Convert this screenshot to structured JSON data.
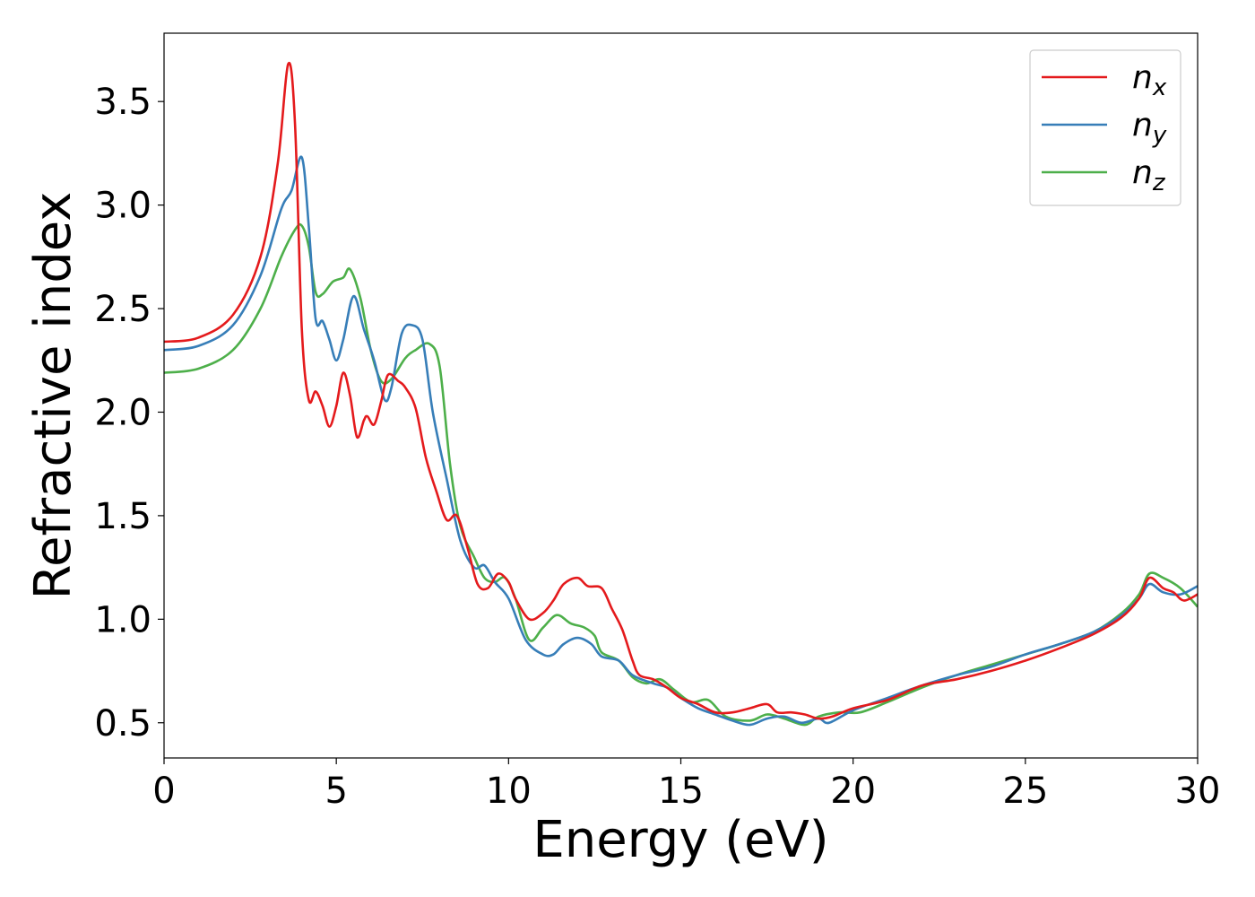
{
  "chart_data": {
    "type": "line",
    "xlabel": "Energy (eV)",
    "ylabel": "Refractive index",
    "xlim": [
      0,
      30
    ],
    "ylim": [
      0.33,
      3.83
    ],
    "xticks": [
      0,
      5,
      10,
      15,
      20,
      25,
      30
    ],
    "xtick_labels": [
      "0",
      "5",
      "10",
      "15",
      "20",
      "25",
      "30"
    ],
    "yticks": [
      0.5,
      1.0,
      1.5,
      2.0,
      2.5,
      3.0,
      3.5
    ],
    "ytick_labels": [
      "0.5",
      "1.0",
      "1.5",
      "2.0",
      "2.5",
      "3.0",
      "3.5"
    ],
    "grid": false,
    "legend_position": "top-right",
    "series": [
      {
        "name": "n",
        "subscript": "x",
        "color": "#e41a1c",
        "points": [
          [
            0,
            2.34
          ],
          [
            1,
            2.36
          ],
          [
            2,
            2.47
          ],
          [
            2.8,
            2.75
          ],
          [
            3.3,
            3.2
          ],
          [
            3.6,
            3.68
          ],
          [
            3.8,
            3.4
          ],
          [
            4.0,
            2.4
          ],
          [
            4.2,
            2.06
          ],
          [
            4.4,
            2.1
          ],
          [
            4.6,
            2.03
          ],
          [
            4.8,
            1.93
          ],
          [
            5.0,
            2.03
          ],
          [
            5.2,
            2.19
          ],
          [
            5.4,
            2.08
          ],
          [
            5.6,
            1.88
          ],
          [
            5.8,
            1.96
          ],
          [
            5.9,
            1.98
          ],
          [
            6.1,
            1.94
          ],
          [
            6.3,
            2.05
          ],
          [
            6.5,
            2.18
          ],
          [
            6.8,
            2.15
          ],
          [
            7.0,
            2.12
          ],
          [
            7.3,
            2.02
          ],
          [
            7.6,
            1.78
          ],
          [
            7.9,
            1.62
          ],
          [
            8.2,
            1.48
          ],
          [
            8.5,
            1.5
          ],
          [
            8.8,
            1.35
          ],
          [
            9.1,
            1.17
          ],
          [
            9.4,
            1.15
          ],
          [
            9.7,
            1.22
          ],
          [
            10.0,
            1.18
          ],
          [
            10.2,
            1.1
          ],
          [
            10.6,
            1.0
          ],
          [
            11.0,
            1.03
          ],
          [
            11.3,
            1.09
          ],
          [
            11.6,
            1.17
          ],
          [
            12.0,
            1.2
          ],
          [
            12.3,
            1.16
          ],
          [
            12.7,
            1.15
          ],
          [
            13.0,
            1.05
          ],
          [
            13.3,
            0.95
          ],
          [
            13.6,
            0.8
          ],
          [
            13.8,
            0.73
          ],
          [
            14.2,
            0.71
          ],
          [
            14.6,
            0.67
          ],
          [
            15.0,
            0.62
          ],
          [
            15.5,
            0.59
          ],
          [
            16.0,
            0.55
          ],
          [
            16.5,
            0.55
          ],
          [
            17.0,
            0.57
          ],
          [
            17.5,
            0.59
          ],
          [
            17.8,
            0.55
          ],
          [
            18.2,
            0.55
          ],
          [
            18.6,
            0.54
          ],
          [
            19.0,
            0.52
          ],
          [
            19.4,
            0.53
          ],
          [
            20.0,
            0.57
          ],
          [
            21.0,
            0.61
          ],
          [
            22.0,
            0.68
          ],
          [
            23.0,
            0.71
          ],
          [
            24.0,
            0.75
          ],
          [
            25.0,
            0.8
          ],
          [
            26.0,
            0.86
          ],
          [
            27.0,
            0.93
          ],
          [
            27.8,
            1.01
          ],
          [
            28.3,
            1.1
          ],
          [
            28.6,
            1.2
          ],
          [
            29.0,
            1.15
          ],
          [
            29.3,
            1.13
          ],
          [
            29.6,
            1.09
          ],
          [
            30.0,
            1.12
          ]
        ]
      },
      {
        "name": "n",
        "subscript": "y",
        "color": "#377eb8",
        "points": [
          [
            0,
            2.3
          ],
          [
            1,
            2.32
          ],
          [
            2,
            2.42
          ],
          [
            2.8,
            2.66
          ],
          [
            3.4,
            2.98
          ],
          [
            3.7,
            3.07
          ],
          [
            4.0,
            3.23
          ],
          [
            4.2,
            2.9
          ],
          [
            4.4,
            2.45
          ],
          [
            4.6,
            2.44
          ],
          [
            4.8,
            2.35
          ],
          [
            5.0,
            2.25
          ],
          [
            5.2,
            2.35
          ],
          [
            5.5,
            2.56
          ],
          [
            5.8,
            2.4
          ],
          [
            6.1,
            2.25
          ],
          [
            6.4,
            2.06
          ],
          [
            6.6,
            2.12
          ],
          [
            6.9,
            2.38
          ],
          [
            7.2,
            2.42
          ],
          [
            7.5,
            2.35
          ],
          [
            7.8,
            2.0
          ],
          [
            8.2,
            1.68
          ],
          [
            8.6,
            1.38
          ],
          [
            9.0,
            1.25
          ],
          [
            9.3,
            1.26
          ],
          [
            9.6,
            1.18
          ],
          [
            10.0,
            1.1
          ],
          [
            10.5,
            0.9
          ],
          [
            11.0,
            0.83
          ],
          [
            11.3,
            0.83
          ],
          [
            11.6,
            0.88
          ],
          [
            12.0,
            0.91
          ],
          [
            12.4,
            0.88
          ],
          [
            12.7,
            0.82
          ],
          [
            13.2,
            0.8
          ],
          [
            13.6,
            0.73
          ],
          [
            14.2,
            0.69
          ],
          [
            14.6,
            0.67
          ],
          [
            15.0,
            0.62
          ],
          [
            15.5,
            0.57
          ],
          [
            16.0,
            0.54
          ],
          [
            16.5,
            0.51
          ],
          [
            17.0,
            0.49
          ],
          [
            17.5,
            0.52
          ],
          [
            18.0,
            0.53
          ],
          [
            18.5,
            0.5
          ],
          [
            19.0,
            0.52
          ],
          [
            19.3,
            0.5
          ],
          [
            20.0,
            0.56
          ],
          [
            21.0,
            0.62
          ],
          [
            22.0,
            0.68
          ],
          [
            23.0,
            0.73
          ],
          [
            24.0,
            0.77
          ],
          [
            25.0,
            0.83
          ],
          [
            26.0,
            0.88
          ],
          [
            27.0,
            0.94
          ],
          [
            27.8,
            1.02
          ],
          [
            28.3,
            1.1
          ],
          [
            28.6,
            1.17
          ],
          [
            29.0,
            1.13
          ],
          [
            29.5,
            1.12
          ],
          [
            30.0,
            1.16
          ]
        ]
      },
      {
        "name": "n",
        "subscript": "z",
        "color": "#4daf4a",
        "points": [
          [
            0,
            2.19
          ],
          [
            1,
            2.21
          ],
          [
            2,
            2.3
          ],
          [
            2.8,
            2.5
          ],
          [
            3.4,
            2.75
          ],
          [
            3.8,
            2.88
          ],
          [
            4.0,
            2.9
          ],
          [
            4.2,
            2.8
          ],
          [
            4.4,
            2.58
          ],
          [
            4.6,
            2.57
          ],
          [
            4.9,
            2.63
          ],
          [
            5.2,
            2.65
          ],
          [
            5.4,
            2.69
          ],
          [
            5.7,
            2.55
          ],
          [
            6.0,
            2.3
          ],
          [
            6.3,
            2.15
          ],
          [
            6.6,
            2.16
          ],
          [
            7.0,
            2.26
          ],
          [
            7.3,
            2.3
          ],
          [
            7.7,
            2.33
          ],
          [
            8.0,
            2.22
          ],
          [
            8.3,
            1.75
          ],
          [
            8.6,
            1.45
          ],
          [
            9.0,
            1.3
          ],
          [
            9.3,
            1.2
          ],
          [
            9.6,
            1.18
          ],
          [
            9.9,
            1.2
          ],
          [
            10.2,
            1.1
          ],
          [
            10.6,
            0.9
          ],
          [
            11.0,
            0.96
          ],
          [
            11.4,
            1.02
          ],
          [
            11.8,
            0.98
          ],
          [
            12.2,
            0.96
          ],
          [
            12.5,
            0.92
          ],
          [
            12.7,
            0.84
          ],
          [
            13.2,
            0.8
          ],
          [
            13.6,
            0.72
          ],
          [
            14.0,
            0.69
          ],
          [
            14.4,
            0.71
          ],
          [
            14.8,
            0.66
          ],
          [
            15.3,
            0.6
          ],
          [
            15.8,
            0.61
          ],
          [
            16.3,
            0.53
          ],
          [
            17.0,
            0.51
          ],
          [
            17.5,
            0.54
          ],
          [
            18.0,
            0.52
          ],
          [
            18.6,
            0.49
          ],
          [
            19.0,
            0.53
          ],
          [
            19.6,
            0.55
          ],
          [
            20.2,
            0.55
          ],
          [
            21.0,
            0.6
          ],
          [
            22.0,
            0.67
          ],
          [
            23.0,
            0.73
          ],
          [
            24.0,
            0.78
          ],
          [
            25.0,
            0.83
          ],
          [
            26.0,
            0.88
          ],
          [
            27.0,
            0.94
          ],
          [
            27.8,
            1.03
          ],
          [
            28.3,
            1.12
          ],
          [
            28.6,
            1.22
          ],
          [
            29.0,
            1.2
          ],
          [
            29.5,
            1.15
          ],
          [
            30.0,
            1.06
          ]
        ]
      }
    ]
  }
}
